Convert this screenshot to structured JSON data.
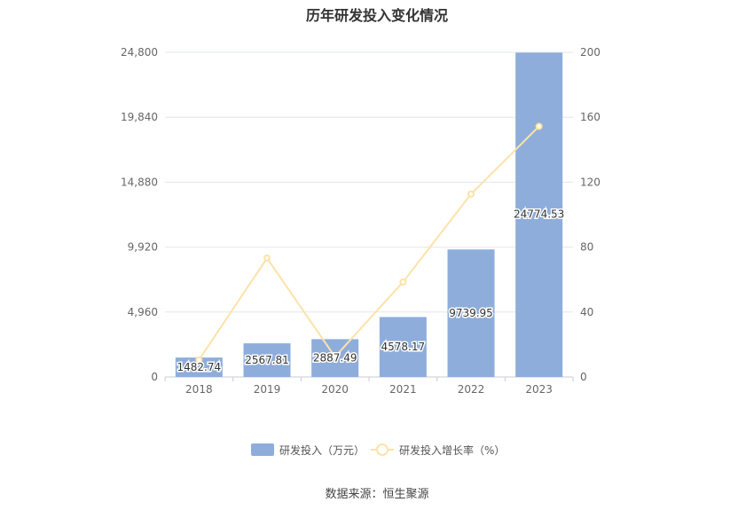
{
  "chart_data": {
    "type": "bar",
    "title": "历年研发投入变化情况",
    "categories": [
      "2018",
      "2019",
      "2020",
      "2021",
      "2022",
      "2023"
    ],
    "series": [
      {
        "name": "研发投入（万元）",
        "type": "bar",
        "axis": "left",
        "values": [
          1482.74,
          2567.81,
          2887.49,
          4578.17,
          9739.95,
          24774.53
        ],
        "labels": [
          "1482.74",
          "2567.81",
          "2887.49",
          "4578.17",
          "9739.95",
          "24774.53"
        ],
        "color": "#8eaddb"
      },
      {
        "name": "研发投入增长率（%）",
        "type": "line",
        "axis": "right",
        "values": [
          10.5,
          73.2,
          12.4,
          58.5,
          112.7,
          154.4
        ],
        "color": "#fde2a8"
      }
    ],
    "y_left": {
      "min": 0,
      "max": 24800,
      "ticks": [
        "0",
        "4,960",
        "9,920",
        "14,880",
        "19,840",
        "24,800"
      ]
    },
    "y_right": {
      "min": 0,
      "max": 200,
      "ticks": [
        "0",
        "40",
        "80",
        "120",
        "160",
        "200"
      ]
    },
    "grid": true,
    "legend_position": "bottom"
  },
  "footer": {
    "source": "数据来源：恒生聚源"
  }
}
